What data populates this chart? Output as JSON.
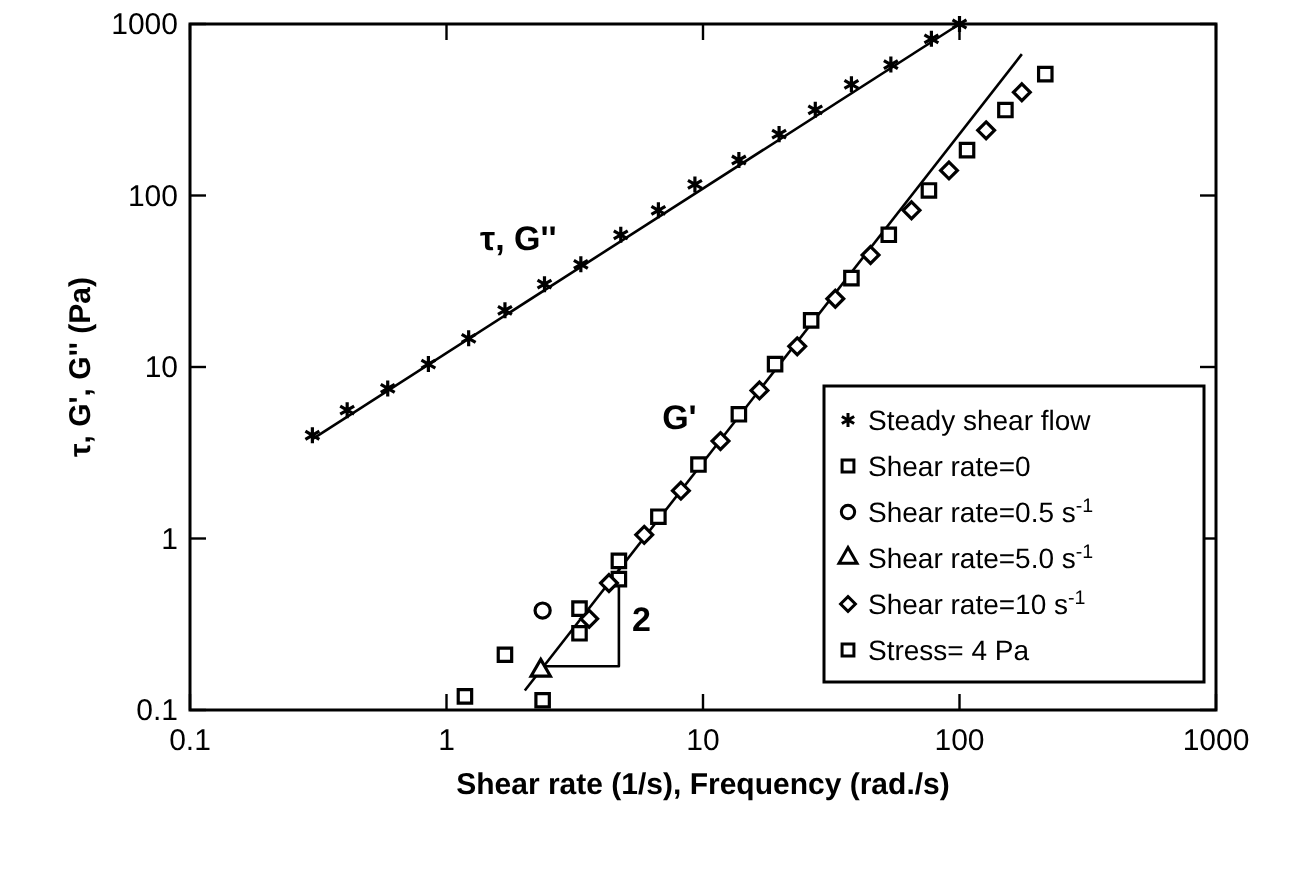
{
  "chart_data": {
    "type": "scatter",
    "xlabel": "Shear rate (1/s), Frequency (rad./s)",
    "ylabel": "τ, G', G'' (Pa)",
    "log": "xy",
    "xlim": [
      0.1,
      1000
    ],
    "ylim": [
      0.1,
      1000
    ],
    "xticks": [
      0.1,
      1,
      10,
      100,
      1000
    ],
    "yticks": [
      0.1,
      1,
      10,
      100,
      1000
    ],
    "legend": "bottom right",
    "series": [
      {
        "name": "Steady shear flow",
        "marker": "cross",
        "color": "#000000",
        "x": [
          0.3,
          0.41,
          0.59,
          0.85,
          1.22,
          1.69,
          2.41,
          3.34,
          4.78,
          6.7,
          9.3,
          13.8,
          19.8,
          27.4,
          37.9,
          54,
          77.7,
          100
        ],
        "values": [
          4,
          5.6,
          7.5,
          10.4,
          14.7,
          21.4,
          30.4,
          39.7,
          59,
          82,
          116,
          161,
          228,
          316,
          445,
          580,
          820,
          1000
        ]
      },
      {
        "name": "Shear rate=0",
        "marker": "square",
        "color": "#000000",
        "x": [
          3.3,
          3.3,
          4.7,
          4.7,
          6.7,
          9.6,
          13.8,
          19.1,
          26.4,
          37.9,
          53,
          76,
          107,
          151,
          216
        ],
        "values": [
          0.28,
          0.39,
          0.58,
          0.74,
          1.34,
          2.7,
          5.3,
          10.4,
          18.7,
          33,
          59,
          107,
          184,
          315,
          510
        ]
      },
      {
        "name": "Shear rate=0.5 s$^{-1}$",
        "marker": "circle",
        "color": "#000000",
        "x": [
          2.37
        ],
        "values": [
          0.38
        ]
      },
      {
        "name": "Shear rate=5.0 s$^{-1}$",
        "marker": "triangle",
        "color": "#000000",
        "x": [
          2.33
        ],
        "values": [
          0.17
        ]
      },
      {
        "name": "Shear rate=10 s$^{-1}$",
        "marker": "diamond",
        "color": "#000000",
        "x": [
          3.6,
          4.3,
          5.9,
          8.2,
          11.7,
          16.6,
          23.3,
          32.8,
          45,
          65,
          91,
          127,
          175
        ],
        "values": [
          0.34,
          0.55,
          1.05,
          1.9,
          3.7,
          7.3,
          13.2,
          25,
          45,
          82,
          140,
          240,
          400
        ]
      },
      {
        "name": "Stress= 4 Pa",
        "marker": "square",
        "color": "#000000",
        "x": [
          1.18,
          1.69,
          2.37
        ],
        "values": [
          0.12,
          0.21,
          0.114
        ]
      },
      {
        "type": "line",
        "color": "#000000",
        "x": [
          0.3,
          100
        ],
        "values": [
          3.8,
          1000
        ]
      },
      {
        "type": "line",
        "color": "#000000",
        "x": [
          2.02,
          175
        ],
        "values": [
          0.13,
          667
        ]
      },
      {
        "type": "line",
        "color": "#000000",
        "x": [
          2.3,
          4.7,
          4.7
        ],
        "values": [
          0.18,
          0.18,
          0.75
        ]
      }
    ],
    "annotations": [
      "τ, G''",
      "G'",
      "2"
    ]
  }
}
